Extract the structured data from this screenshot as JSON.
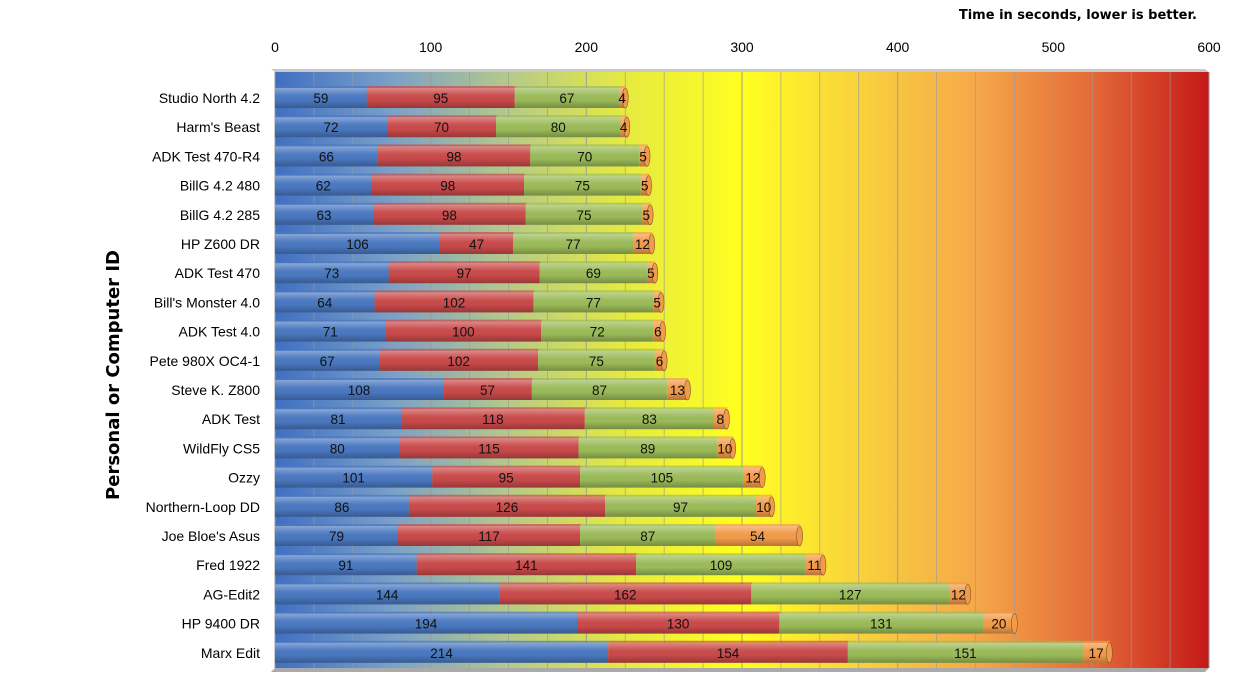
{
  "chart_data": {
    "type": "bar",
    "orientation": "horizontal",
    "stacked": true,
    "title": "Time in seconds, lower is better.",
    "ylabel": "Personal or Computer ID",
    "xlabel": "",
    "xlim": [
      0,
      600
    ],
    "x_ticks": [
      0,
      100,
      200,
      300,
      400,
      500,
      600
    ],
    "grid": true,
    "legend": "none",
    "categories": [
      "Studio North 4.2",
      "Harm's Beast",
      "ADK Test 470-R4",
      "BillG 4.2 480",
      "BillG 4.2 285",
      "HP Z600 DR",
      "ADK Test 470",
      "Bill's Monster 4.0",
      "ADK Test 4.0",
      "Pete 980X OC4-1",
      "Steve K. Z800",
      "ADK Test",
      "WildFly CS5",
      "Ozzy",
      "Northern-Loop DD",
      "Joe Bloe's Asus",
      "Fred 1922",
      "AG-Edit2",
      "HP 9400 DR",
      "Marx Edit"
    ],
    "series": [
      {
        "color": "#4a78c0",
        "values": [
          59,
          72,
          66,
          62,
          63,
          106,
          73,
          64,
          71,
          67,
          108,
          81,
          80,
          101,
          86,
          79,
          91,
          144,
          194,
          214
        ]
      },
      {
        "color": "#c94a4a",
        "values": [
          95,
          70,
          98,
          98,
          98,
          47,
          97,
          102,
          100,
          102,
          57,
          118,
          115,
          95,
          126,
          117,
          141,
          162,
          130,
          154
        ]
      },
      {
        "color": "#9bbb59",
        "values": [
          67,
          80,
          70,
          75,
          75,
          77,
          69,
          77,
          72,
          75,
          87,
          83,
          89,
          105,
          97,
          87,
          109,
          127,
          131,
          151
        ]
      },
      {
        "color": "#f29a4a",
        "values": [
          4,
          4,
          5,
          5,
          5,
          12,
          5,
          5,
          6,
          6,
          13,
          8,
          10,
          12,
          10,
          54,
          11,
          12,
          20,
          17
        ]
      }
    ],
    "background_gradient": [
      "#3f6fc2",
      "#7aa0c8",
      "#b5c98a",
      "#e6ea40",
      "#ffff20",
      "#f9d23c",
      "#f5a84a",
      "#e46a38",
      "#c41818"
    ]
  }
}
